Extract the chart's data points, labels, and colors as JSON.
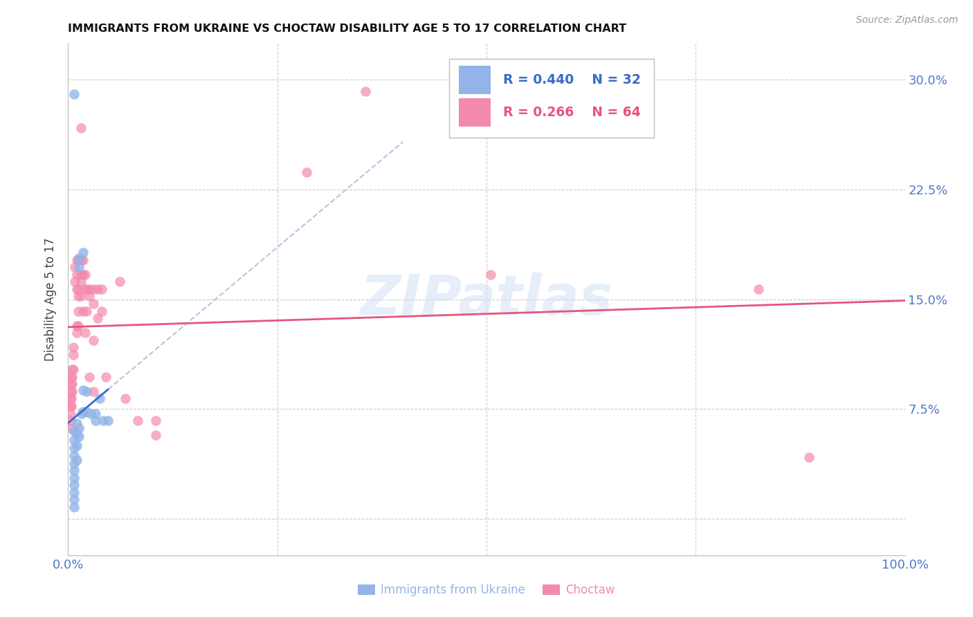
{
  "title": "IMMIGRANTS FROM UKRAINE VS CHOCTAW DISABILITY AGE 5 TO 17 CORRELATION CHART",
  "source": "Source: ZipAtlas.com",
  "ylabel": "Disability Age 5 to 17",
  "xlim": [
    0,
    1.0
  ],
  "ylim": [
    -0.025,
    0.325
  ],
  "xticks": [
    0.0,
    0.25,
    0.5,
    0.75,
    1.0
  ],
  "xticklabels": [
    "0.0%",
    "",
    "",
    "",
    "100.0%"
  ],
  "yticks": [
    0.0,
    0.075,
    0.15,
    0.225,
    0.3
  ],
  "yticklabels": [
    "",
    "7.5%",
    "15.0%",
    "22.5%",
    "30.0%"
  ],
  "legend_ukraine_R": "R = 0.440",
  "legend_ukraine_N": "N = 32",
  "legend_choctaw_R": "R = 0.266",
  "legend_choctaw_N": "N = 64",
  "ukraine_color": "#92b4e8",
  "choctaw_color": "#f48aab",
  "ukraine_line_color": "#3a6bc8",
  "choctaw_line_color": "#e8547a",
  "watermark": "ZIPatlas",
  "background_color": "#ffffff",
  "grid_color": "#cccccc",
  "tick_label_color": "#4d79c7",
  "ukraine_points": [
    [
      0.007,
      0.29
    ],
    [
      0.007,
      0.06
    ],
    [
      0.007,
      0.054
    ],
    [
      0.007,
      0.048
    ],
    [
      0.007,
      0.043
    ],
    [
      0.007,
      0.038
    ],
    [
      0.007,
      0.033
    ],
    [
      0.007,
      0.028
    ],
    [
      0.007,
      0.023
    ],
    [
      0.007,
      0.018
    ],
    [
      0.007,
      0.013
    ],
    [
      0.007,
      0.008
    ],
    [
      0.01,
      0.065
    ],
    [
      0.01,
      0.058
    ],
    [
      0.01,
      0.05
    ],
    [
      0.01,
      0.04
    ],
    [
      0.013,
      0.178
    ],
    [
      0.013,
      0.172
    ],
    [
      0.013,
      0.062
    ],
    [
      0.013,
      0.056
    ],
    [
      0.016,
      0.072
    ],
    [
      0.018,
      0.182
    ],
    [
      0.018,
      0.088
    ],
    [
      0.018,
      0.073
    ],
    [
      0.022,
      0.087
    ],
    [
      0.022,
      0.073
    ],
    [
      0.027,
      0.072
    ],
    [
      0.033,
      0.072
    ],
    [
      0.033,
      0.067
    ],
    [
      0.038,
      0.082
    ],
    [
      0.042,
      0.067
    ],
    [
      0.048,
      0.067
    ]
  ],
  "choctaw_points": [
    [
      0.003,
      0.082
    ],
    [
      0.003,
      0.077
    ],
    [
      0.003,
      0.072
    ],
    [
      0.003,
      0.067
    ],
    [
      0.003,
      0.062
    ],
    [
      0.004,
      0.097
    ],
    [
      0.004,
      0.092
    ],
    [
      0.004,
      0.087
    ],
    [
      0.004,
      0.082
    ],
    [
      0.004,
      0.077
    ],
    [
      0.005,
      0.102
    ],
    [
      0.005,
      0.097
    ],
    [
      0.005,
      0.092
    ],
    [
      0.005,
      0.087
    ],
    [
      0.006,
      0.117
    ],
    [
      0.006,
      0.112
    ],
    [
      0.006,
      0.102
    ],
    [
      0.008,
      0.172
    ],
    [
      0.008,
      0.162
    ],
    [
      0.01,
      0.177
    ],
    [
      0.01,
      0.167
    ],
    [
      0.01,
      0.157
    ],
    [
      0.01,
      0.132
    ],
    [
      0.01,
      0.127
    ],
    [
      0.012,
      0.177
    ],
    [
      0.012,
      0.157
    ],
    [
      0.012,
      0.152
    ],
    [
      0.012,
      0.142
    ],
    [
      0.012,
      0.132
    ],
    [
      0.015,
      0.267
    ],
    [
      0.015,
      0.177
    ],
    [
      0.015,
      0.167
    ],
    [
      0.015,
      0.162
    ],
    [
      0.015,
      0.152
    ],
    [
      0.018,
      0.177
    ],
    [
      0.018,
      0.167
    ],
    [
      0.018,
      0.142
    ],
    [
      0.02,
      0.167
    ],
    [
      0.02,
      0.157
    ],
    [
      0.02,
      0.127
    ],
    [
      0.022,
      0.157
    ],
    [
      0.022,
      0.142
    ],
    [
      0.025,
      0.157
    ],
    [
      0.025,
      0.152
    ],
    [
      0.025,
      0.097
    ],
    [
      0.03,
      0.157
    ],
    [
      0.03,
      0.147
    ],
    [
      0.03,
      0.122
    ],
    [
      0.03,
      0.087
    ],
    [
      0.035,
      0.157
    ],
    [
      0.035,
      0.137
    ],
    [
      0.04,
      0.157
    ],
    [
      0.04,
      0.142
    ],
    [
      0.045,
      0.097
    ],
    [
      0.062,
      0.162
    ],
    [
      0.068,
      0.082
    ],
    [
      0.083,
      0.067
    ],
    [
      0.105,
      0.067
    ],
    [
      0.105,
      0.057
    ],
    [
      0.285,
      0.237
    ],
    [
      0.355,
      0.292
    ],
    [
      0.505,
      0.167
    ],
    [
      0.825,
      0.157
    ],
    [
      0.885,
      0.042
    ]
  ]
}
